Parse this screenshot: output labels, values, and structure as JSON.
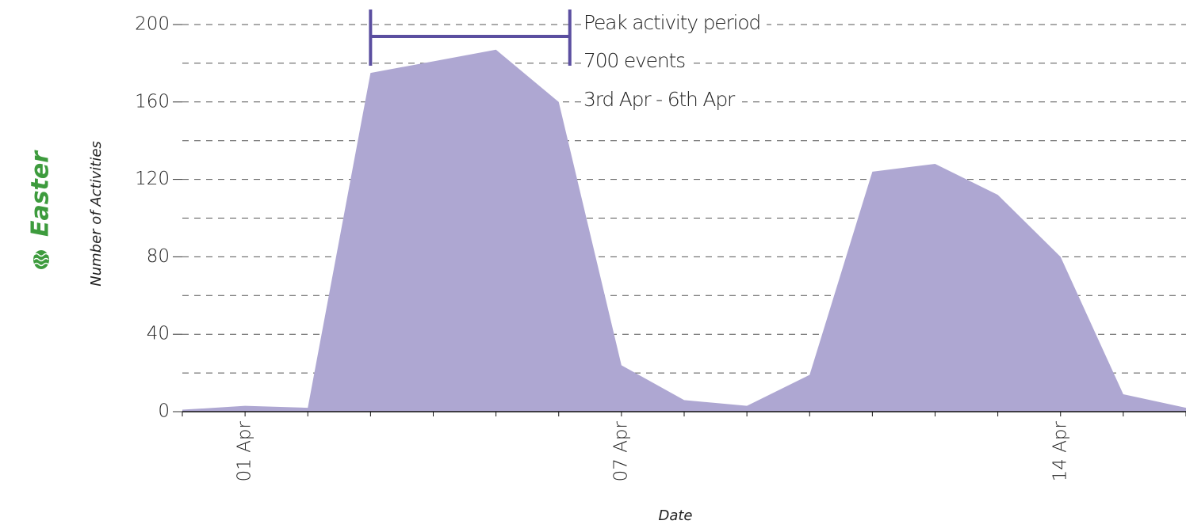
{
  "chart_data": {
    "type": "area",
    "side_label": "Easter",
    "ylabel": "Number of Activities",
    "xlabel": "Date",
    "categories": [
      null,
      "01 Apr",
      null,
      null,
      null,
      null,
      null,
      "07 Apr",
      null,
      null,
      null,
      null,
      null,
      null,
      "14 Apr",
      null,
      null
    ],
    "values": [
      1,
      3,
      2,
      175,
      181,
      187,
      160,
      24,
      6,
      3,
      19,
      124,
      128,
      112,
      80,
      9,
      2
    ],
    "color": "#aea7d2",
    "annotation": {
      "lines": [
        "Peak activity period",
        "700 events",
        "3rd Apr - 6th Apr"
      ],
      "color": "#5b4fa0"
    },
    "side_label_color": "#3d9b3d",
    "ylim": [
      0,
      200
    ],
    "yticks": [
      0,
      40,
      80,
      120,
      160,
      200
    ],
    "minor_yticks": [
      20,
      60,
      100,
      140,
      180
    ],
    "grid": true
  }
}
